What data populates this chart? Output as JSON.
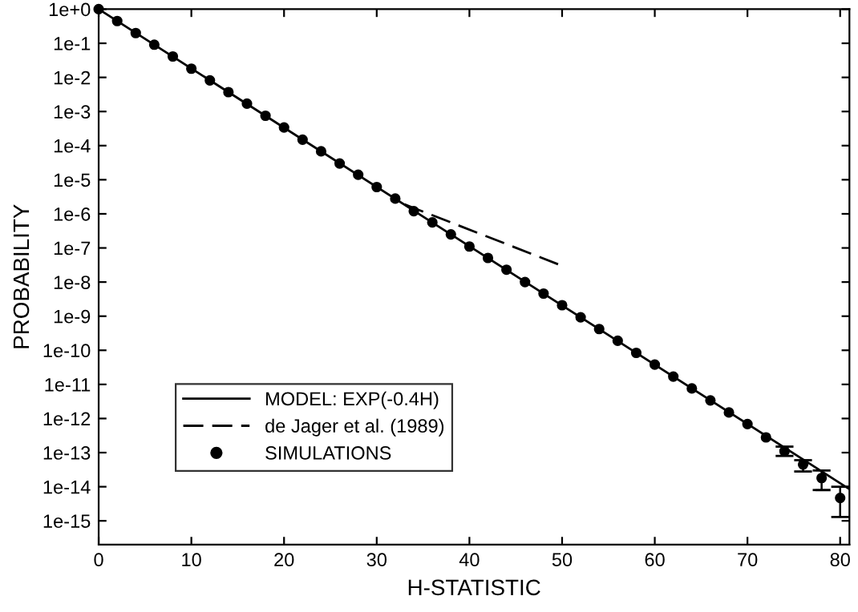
{
  "chart_data": {
    "type": "line",
    "xlabel": "H-STATISTIC",
    "ylabel": "PROBABILITY",
    "log": "y",
    "grid": false,
    "legend": "bottom left",
    "xlim": [
      0,
      81
    ],
    "xticks": [
      0,
      10,
      20,
      30,
      40,
      50,
      60,
      70,
      80
    ],
    "ylim": [
      2e-16,
      1
    ],
    "yticks": [
      {
        "value": 1,
        "label": "1e+0"
      },
      {
        "value": 0.1,
        "label": "1e-1"
      },
      {
        "value": 0.01,
        "label": "1e-2"
      },
      {
        "value": 0.001,
        "label": "1e-3"
      },
      {
        "value": 0.0001,
        "label": "1e-4"
      },
      {
        "value": 1e-05,
        "label": "1e-5"
      },
      {
        "value": 1e-06,
        "label": "1e-6"
      },
      {
        "value": 1e-07,
        "label": "1e-7"
      },
      {
        "value": 1e-08,
        "label": "1e-8"
      },
      {
        "value": 1e-09,
        "label": "1e-9"
      },
      {
        "value": 1e-10,
        "label": "1e-10"
      },
      {
        "value": 1e-11,
        "label": "1e-11"
      },
      {
        "value": 1e-12,
        "label": "1e-12"
      },
      {
        "value": 1e-13,
        "label": "1e-13"
      },
      {
        "value": 1e-14,
        "label": "1e-14"
      },
      {
        "value": 1e-15,
        "label": "1e-15"
      }
    ],
    "series": [
      {
        "name": "MODEL: EXP(-0.4H)",
        "line_style": "solid",
        "marker": "none",
        "color": "#000000",
        "x": [
          0,
          81
        ],
        "values": [
          1,
          8.5e-15
        ]
      },
      {
        "name": "de Jager et al. (1989)",
        "line_style": "dashed",
        "marker": "none",
        "color": "#000000",
        "x": [
          33,
          50
        ],
        "values": [
          1.9e-06,
          3e-08
        ]
      },
      {
        "name": "SIMULATIONS",
        "type": "scatter",
        "marker": "circle",
        "color": "#000000",
        "x": [
          0,
          2,
          4,
          6,
          8,
          10,
          12,
          14,
          16,
          18,
          20,
          22,
          24,
          26,
          28,
          30,
          32,
          34,
          36,
          38,
          40,
          42,
          44,
          46,
          48,
          50,
          52,
          54,
          56,
          58,
          60,
          62,
          64,
          66,
          68,
          70,
          72,
          74,
          76,
          78,
          80
        ],
        "values": [
          1,
          0.45,
          0.2,
          0.091,
          0.041,
          0.018,
          0.0082,
          0.0037,
          0.0017,
          0.00075,
          0.00034,
          0.00015,
          6.8e-05,
          3e-05,
          1.4e-05,
          6.1e-06,
          2.8e-06,
          1.2e-06,
          5.6e-07,
          2.5e-07,
          1.1e-07,
          5.1e-08,
          2.3e-08,
          1e-08,
          4.6e-09,
          2.1e-09,
          9.3e-10,
          4.2e-10,
          1.9e-10,
          8.4e-11,
          3.8e-11,
          1.7e-11,
          7.6e-12,
          3.4e-12,
          1.5e-12,
          6.9e-13,
          2.8e-13,
          1.1e-13,
          4.5e-14,
          1.8e-14,
          4.7e-15
        ],
        "errors": [
          null,
          null,
          null,
          null,
          null,
          null,
          null,
          null,
          null,
          null,
          null,
          null,
          null,
          null,
          null,
          null,
          null,
          null,
          null,
          null,
          null,
          null,
          null,
          null,
          null,
          null,
          null,
          null,
          null,
          null,
          null,
          null,
          null,
          null,
          null,
          null,
          null,
          [
            8e-14,
            1.5e-13
          ],
          [
            2.8e-14,
            6e-14
          ],
          [
            8e-15,
            3e-14
          ],
          [
            1.3e-15,
            1e-14
          ]
        ]
      }
    ]
  }
}
